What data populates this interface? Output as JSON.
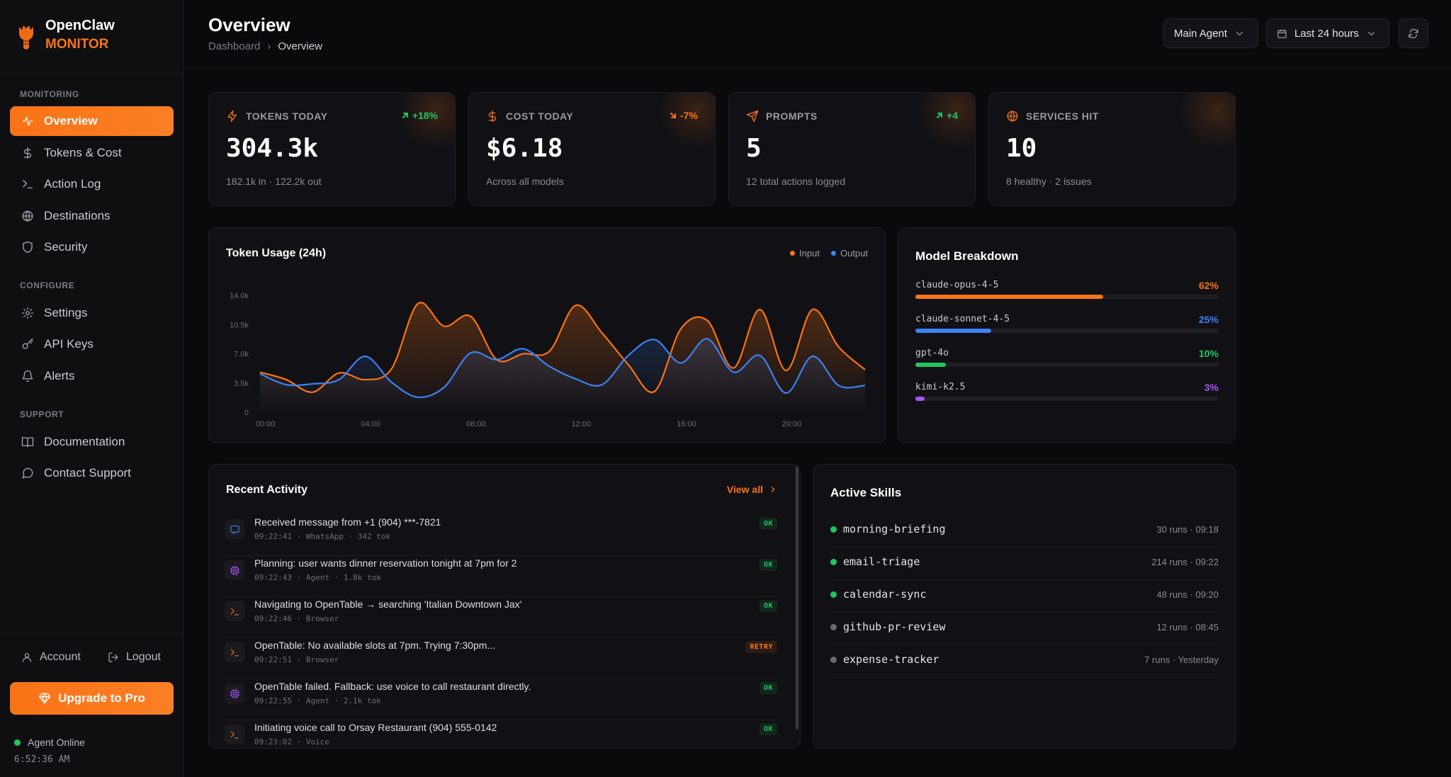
{
  "brand": {
    "name": "OpenClaw",
    "sub": "MONITOR"
  },
  "nav": {
    "monitoring_label": "MONITORING",
    "monitoring": [
      {
        "label": "Overview",
        "icon": "activity-icon",
        "active": true
      },
      {
        "label": "Tokens & Cost",
        "icon": "dollar-icon"
      },
      {
        "label": "Action Log",
        "icon": "terminal-icon"
      },
      {
        "label": "Destinations",
        "icon": "globe-icon"
      },
      {
        "label": "Security",
        "icon": "shield-icon"
      }
    ],
    "configure_label": "CONFIGURE",
    "configure": [
      {
        "label": "Settings",
        "icon": "gear-icon"
      },
      {
        "label": "API Keys",
        "icon": "key-icon"
      },
      {
        "label": "Alerts",
        "icon": "bell-icon"
      }
    ],
    "support_label": "SUPPORT",
    "support": [
      {
        "label": "Documentation",
        "icon": "book-icon"
      },
      {
        "label": "Contact Support",
        "icon": "chat-icon"
      }
    ]
  },
  "account": {
    "account_label": "Account",
    "logout_label": "Logout",
    "upgrade_label": "Upgrade to Pro"
  },
  "status": {
    "agent": "Agent Online",
    "time": "6:52:36 AM",
    "color": "#22c55e"
  },
  "header": {
    "title": "Overview",
    "breadcrumb": [
      "Dashboard",
      "Overview"
    ],
    "agent_select": "Main Agent",
    "range_select": "Last 24 hours"
  },
  "stats": [
    {
      "label": "TOKENS TODAY",
      "value": "304.3k",
      "sub": "182.1k in · 122.2k out",
      "delta": "+18%",
      "delta_dir": "up",
      "delta_color": "#22c55e",
      "icon": "zap-icon"
    },
    {
      "label": "COST TODAY",
      "value": "$6.18",
      "sub": "Across all models",
      "delta": "-7%",
      "delta_dir": "down",
      "delta_color": "#f97316",
      "icon": "dollar-icon"
    },
    {
      "label": "PROMPTS",
      "value": "5",
      "sub": "12 total actions logged",
      "delta": "+4",
      "delta_dir": "up",
      "delta_color": "#22c55e",
      "icon": "send-icon"
    },
    {
      "label": "SERVICES HIT",
      "value": "10",
      "sub": "8 healthy · 2 issues",
      "delta": "",
      "delta_dir": "",
      "delta_color": "#22c55e",
      "icon": "globe-icon"
    }
  ],
  "chart_data": {
    "type": "area",
    "title": "Token Usage (24h)",
    "x": [
      "00:00",
      "01:00",
      "02:00",
      "03:00",
      "04:00",
      "05:00",
      "06:00",
      "07:00",
      "08:00",
      "09:00",
      "10:00",
      "11:00",
      "12:00",
      "13:00",
      "14:00",
      "15:00",
      "16:00",
      "17:00",
      "18:00",
      "19:00",
      "20:00",
      "21:00",
      "22:00",
      "23:00"
    ],
    "x_ticks": [
      "00:00",
      "04:00",
      "08:00",
      "12:00",
      "16:00",
      "20:00"
    ],
    "y_ticks": [
      "0",
      "3.5k",
      "7.0k",
      "10.5k",
      "14.0k"
    ],
    "ylim": [
      0,
      14000
    ],
    "series": [
      {
        "name": "Input",
        "color": "#f97316",
        "values": [
          4800,
          3900,
          2400,
          4700,
          3900,
          5200,
          13000,
          10300,
          11500,
          6300,
          7000,
          7300,
          12800,
          9500,
          5700,
          2500,
          10000,
          11000,
          5300,
          12300,
          5000,
          12300,
          7800,
          5100
        ]
      },
      {
        "name": "Output",
        "color": "#3b82f6",
        "values": [
          4600,
          3300,
          3400,
          3900,
          6700,
          3600,
          1800,
          3000,
          7100,
          6300,
          7600,
          5500,
          4000,
          3300,
          6800,
          8700,
          5900,
          8800,
          4800,
          6800,
          2300,
          6700,
          3200,
          3200
        ]
      }
    ],
    "legend": "top-right"
  },
  "models": {
    "title": "Model Breakdown",
    "items": [
      {
        "name": "claude-opus-4-5",
        "pct": "62%",
        "value": 62,
        "color": "#f97316"
      },
      {
        "name": "claude-sonnet-4-5",
        "pct": "25%",
        "value": 25,
        "color": "#3b82f6"
      },
      {
        "name": "gpt-4o",
        "pct": "10%",
        "value": 10,
        "color": "#22c55e"
      },
      {
        "name": "kimi-k2.5",
        "pct": "3%",
        "value": 3,
        "color": "#a855f7"
      }
    ]
  },
  "activity": {
    "title": "Recent Activity",
    "view_all": "View all",
    "items": [
      {
        "text": "Received message from +1 (904) ***-7821",
        "meta": "09:22:41 · WhatsApp · 342 tok",
        "badge": "OK",
        "kind": "message"
      },
      {
        "text": "Planning: user wants dinner reservation tonight at 7pm for 2",
        "meta": "09:22:43 · Agent · 1.8k tok",
        "badge": "OK",
        "kind": "agent"
      },
      {
        "text": "Navigating to OpenTable → searching 'Italian Downtown Jax'",
        "meta": "09:22:46 · Browser",
        "badge": "OK",
        "kind": "terminal"
      },
      {
        "text": "OpenTable: No available slots at 7pm. Trying 7:30pm...",
        "meta": "09:22:51 · Browser",
        "badge": "RETRY",
        "kind": "terminal"
      },
      {
        "text": "OpenTable failed. Fallback: use voice to call restaurant directly.",
        "meta": "09:22:55 · Agent · 2.1k tok",
        "badge": "OK",
        "kind": "agent"
      },
      {
        "text": "Initiating voice call to Orsay Restaurant (904) 555-0142",
        "meta": "09:23:02 · Voice",
        "badge": "OK",
        "kind": "terminal"
      }
    ]
  },
  "skills": {
    "title": "Active Skills",
    "items": [
      {
        "name": "morning-briefing",
        "meta": "30 runs · 09:18",
        "active": true
      },
      {
        "name": "email-triage",
        "meta": "214 runs · 09:22",
        "active": true
      },
      {
        "name": "calendar-sync",
        "meta": "48 runs · 09:20",
        "active": true
      },
      {
        "name": "github-pr-review",
        "meta": "12 runs · 08:45",
        "active": false
      },
      {
        "name": "expense-tracker",
        "meta": "7 runs · Yesterday",
        "active": false
      }
    ]
  }
}
